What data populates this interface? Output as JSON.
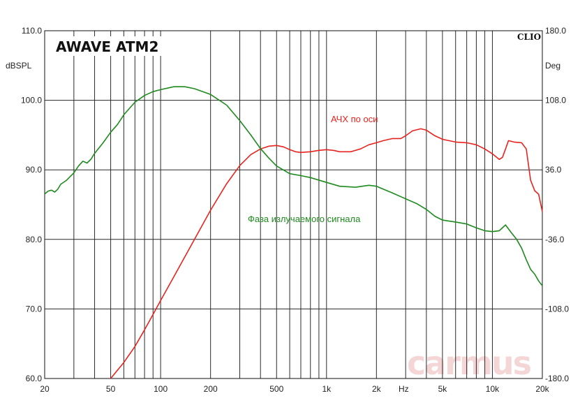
{
  "chart_data": {
    "type": "line",
    "title": "AWAVE ATM2",
    "brand": "CLIO",
    "watermark": "carmus",
    "x_scale": "log",
    "xlim": [
      20,
      20000
    ],
    "ylim_left": [
      60,
      110
    ],
    "ylim_right": [
      -180,
      180
    ],
    "ylabel_left": "dBSPL",
    "ylabel_right": "Deg",
    "x_unit_label": "Hz",
    "grid": true,
    "x_ticks": [
      {
        "value": 20,
        "label": "20"
      },
      {
        "value": 50,
        "label": "50"
      },
      {
        "value": 100,
        "label": "100"
      },
      {
        "value": 200,
        "label": "200"
      },
      {
        "value": 500,
        "label": "500"
      },
      {
        "value": 1000,
        "label": "1k"
      },
      {
        "value": 2000,
        "label": "2k"
      },
      {
        "value": 5000,
        "label": "5k"
      },
      {
        "value": 10000,
        "label": "10k"
      },
      {
        "value": 20000,
        "label": "20k"
      }
    ],
    "y_ticks_left": [
      "60.0",
      "70.0",
      "80.0",
      "90.0",
      "100.0",
      "110.0"
    ],
    "y_ticks_right": [
      "-180.0",
      "-108.0",
      "-36.0",
      "36.0",
      "108.0",
      "180.0"
    ],
    "series": [
      {
        "name": "АЧХ по оси",
        "axis": "left",
        "color": "#e8231e",
        "points": [
          [
            50,
            60.0
          ],
          [
            55,
            61.2
          ],
          [
            60,
            62.3
          ],
          [
            70,
            64.6
          ],
          [
            80,
            67.0
          ],
          [
            90,
            69.2
          ],
          [
            100,
            71.2
          ],
          [
            120,
            74.6
          ],
          [
            150,
            78.8
          ],
          [
            200,
            84.2
          ],
          [
            250,
            88.0
          ],
          [
            300,
            90.6
          ],
          [
            350,
            92.2
          ],
          [
            400,
            93.0
          ],
          [
            450,
            93.4
          ],
          [
            500,
            93.5
          ],
          [
            550,
            93.3
          ],
          [
            600,
            92.9
          ],
          [
            650,
            92.6
          ],
          [
            700,
            92.5
          ],
          [
            800,
            92.6
          ],
          [
            900,
            92.8
          ],
          [
            1000,
            92.9
          ],
          [
            1100,
            92.8
          ],
          [
            1200,
            92.6
          ],
          [
            1400,
            92.6
          ],
          [
            1600,
            93.0
          ],
          [
            1800,
            93.6
          ],
          [
            2000,
            93.9
          ],
          [
            2200,
            94.2
          ],
          [
            2500,
            94.5
          ],
          [
            2800,
            94.5
          ],
          [
            3000,
            94.9
          ],
          [
            3300,
            95.6
          ],
          [
            3700,
            95.9
          ],
          [
            4000,
            95.7
          ],
          [
            4500,
            94.9
          ],
          [
            5000,
            94.4
          ],
          [
            6000,
            94.0
          ],
          [
            7000,
            93.9
          ],
          [
            8000,
            93.6
          ],
          [
            9000,
            93.0
          ],
          [
            10000,
            92.3
          ],
          [
            11000,
            91.5
          ],
          [
            11500,
            91.8
          ],
          [
            12000,
            93.0
          ],
          [
            12500,
            94.2
          ],
          [
            13500,
            94.0
          ],
          [
            15000,
            93.9
          ],
          [
            16000,
            93.0
          ],
          [
            17000,
            88.5
          ],
          [
            18000,
            87.0
          ],
          [
            19000,
            86.5
          ],
          [
            20000,
            84.0
          ]
        ]
      },
      {
        "name": "Фаза излучаемого сигнала",
        "axis": "right",
        "color": "#1e8a1e",
        "points": [
          [
            20,
            11
          ],
          [
            21,
            14
          ],
          [
            22,
            15
          ],
          [
            23,
            13
          ],
          [
            24,
            16
          ],
          [
            25,
            21
          ],
          [
            27,
            25
          ],
          [
            30,
            33
          ],
          [
            32,
            40
          ],
          [
            34,
            45
          ],
          [
            36,
            43
          ],
          [
            38,
            47
          ],
          [
            40,
            53
          ],
          [
            45,
            64
          ],
          [
            50,
            75
          ],
          [
            55,
            83
          ],
          [
            60,
            93
          ],
          [
            70,
            106
          ],
          [
            80,
            113
          ],
          [
            90,
            117
          ],
          [
            100,
            119
          ],
          [
            120,
            122
          ],
          [
            140,
            122
          ],
          [
            160,
            120
          ],
          [
            200,
            114
          ],
          [
            250,
            103
          ],
          [
            300,
            87
          ],
          [
            350,
            72
          ],
          [
            400,
            58
          ],
          [
            450,
            48
          ],
          [
            500,
            40
          ],
          [
            600,
            32
          ],
          [
            700,
            30
          ],
          [
            800,
            28
          ],
          [
            1000,
            23
          ],
          [
            1200,
            19
          ],
          [
            1500,
            18
          ],
          [
            1800,
            20
          ],
          [
            2000,
            19
          ],
          [
            2500,
            12
          ],
          [
            3000,
            6
          ],
          [
            3500,
            1
          ],
          [
            4000,
            -5
          ],
          [
            4500,
            -12
          ],
          [
            5000,
            -16
          ],
          [
            6000,
            -18
          ],
          [
            7000,
            -20
          ],
          [
            8000,
            -24
          ],
          [
            9000,
            -27
          ],
          [
            10000,
            -28
          ],
          [
            11000,
            -27
          ],
          [
            12000,
            -21
          ],
          [
            13000,
            -29
          ],
          [
            14000,
            -36
          ],
          [
            15000,
            -45
          ],
          [
            16000,
            -57
          ],
          [
            17000,
            -67
          ],
          [
            18000,
            -72
          ],
          [
            19000,
            -79
          ],
          [
            20000,
            -84
          ]
        ]
      }
    ],
    "annotations": [
      {
        "text": "АЧХ по оси",
        "series": 0
      },
      {
        "text": "Фаза излучаемого сигнала",
        "series": 1
      }
    ]
  }
}
